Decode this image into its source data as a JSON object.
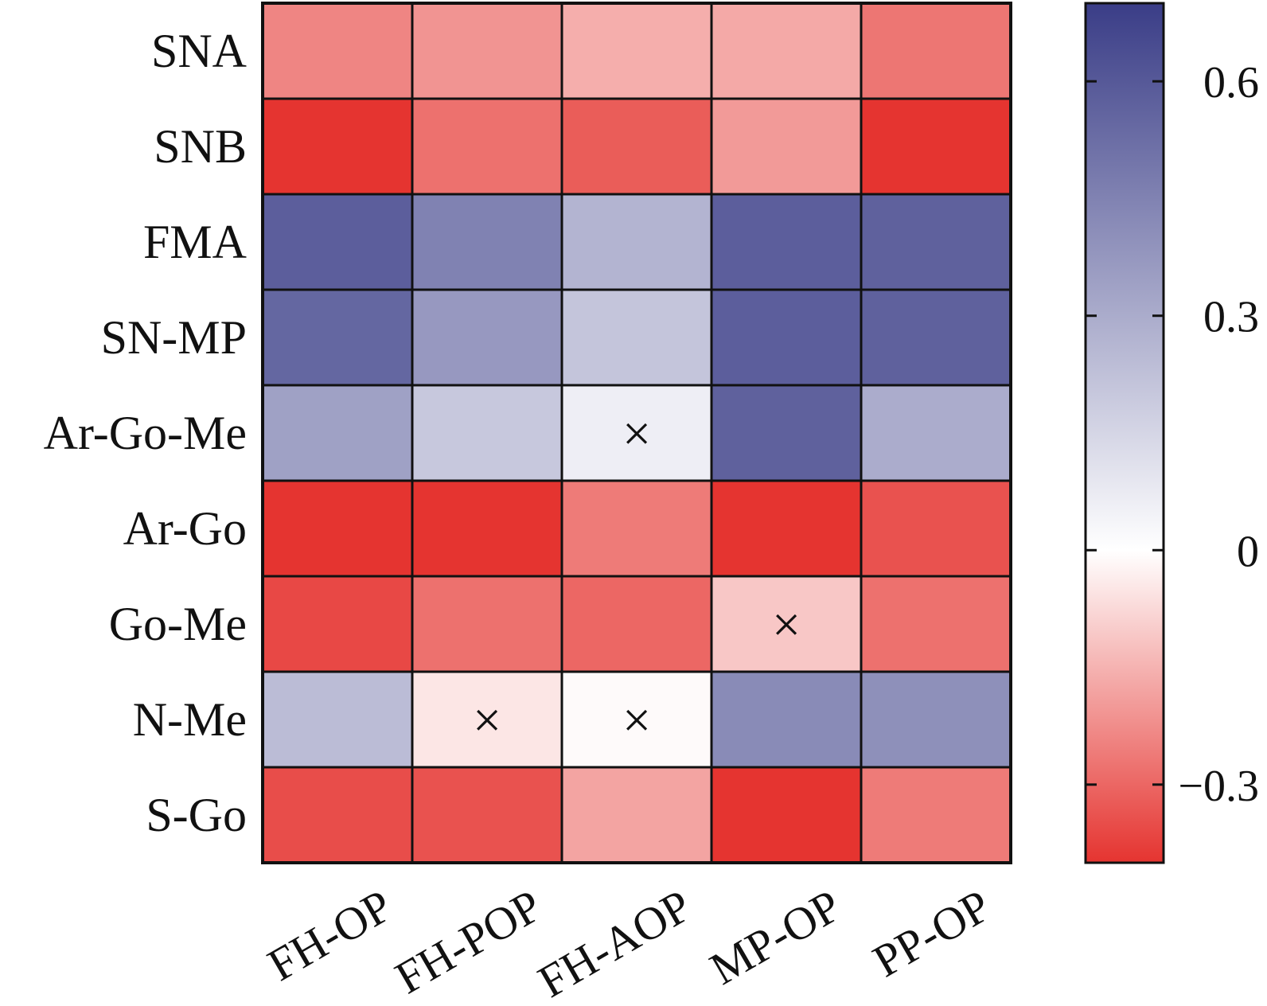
{
  "chart_data": {
    "type": "heatmap",
    "title": "",
    "xlabel": "",
    "ylabel": "",
    "rows": [
      "SNA",
      "SNB",
      "FMA",
      "SN-MP",
      "Ar-Go-Me",
      "Ar-Go",
      "Go-Me",
      "N-Me",
      "S-Go"
    ],
    "columns": [
      "FH-OP",
      "FH-POP",
      "FH-AOP",
      "MP-OP",
      "PP-OP"
    ],
    "values": [
      [
        -0.24,
        -0.21,
        -0.16,
        -0.17,
        -0.27
      ],
      [
        -0.42,
        -0.28,
        -0.32,
        -0.2,
        -0.42
      ],
      [
        0.58,
        0.45,
        0.27,
        0.58,
        0.57
      ],
      [
        0.55,
        0.37,
        0.21,
        0.58,
        0.57
      ],
      [
        0.34,
        0.2,
        0.06,
        0.57,
        0.3
      ],
      [
        -0.42,
        -0.4,
        -0.26,
        -0.44,
        -0.34
      ],
      [
        -0.36,
        -0.28,
        -0.3,
        -0.11,
        -0.28
      ],
      [
        0.24,
        -0.05,
        -0.01,
        0.42,
        0.4
      ],
      [
        -0.35,
        -0.34,
        -0.18,
        -0.42,
        -0.26
      ]
    ],
    "not_significant": [
      [
        4,
        2
      ],
      [
        6,
        3
      ],
      [
        7,
        1
      ],
      [
        7,
        2
      ]
    ],
    "not_significant_marker": "×",
    "colorbar": {
      "range": [
        -0.4,
        0.7
      ],
      "ticks": [
        -0.3,
        0,
        0.3,
        0.6
      ],
      "tick_labels": [
        "−0.3",
        "0",
        "0.3",
        "0.6"
      ],
      "colors": {
        "negative": "#e53430",
        "zero": "#ffffff",
        "positive": "#3a3d87"
      }
    },
    "grid": true,
    "legend": "colorbar-right"
  }
}
